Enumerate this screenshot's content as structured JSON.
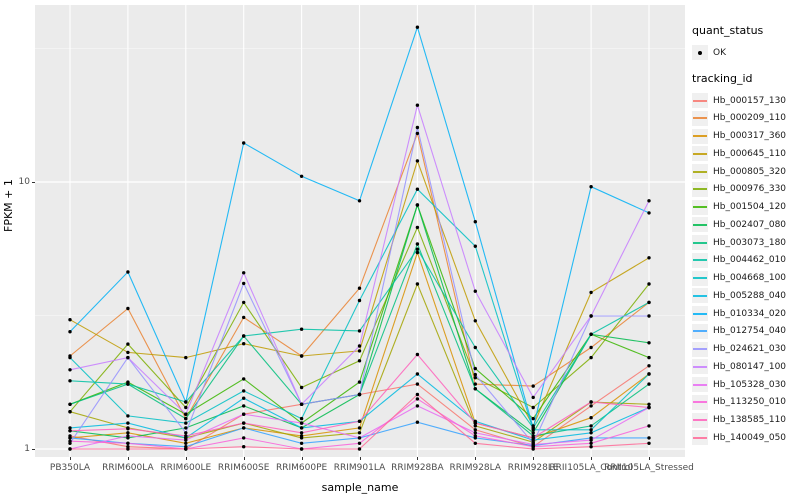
{
  "chart_data": {
    "type": "line",
    "title": "",
    "xlabel": "sample_name",
    "ylabel": "FPKM + 1",
    "y_scale": "log10",
    "ylim": [
      0.93,
      46
    ],
    "y_major_ticks": [
      1,
      10
    ],
    "y_tick_labels": [
      "1",
      "10"
    ],
    "y_minor_ticks": [
      3.1623,
      31.623
    ],
    "grid": "on",
    "legend_position": "right",
    "panel_bg": "#EBEBEB",
    "grid_color": "#FFFFFF",
    "point_color": "#000000",
    "categories": [
      "PB350LA",
      "RRIM600LA",
      "RRIM600LE",
      "RRIM600SE",
      "RRIM600PE",
      "RRIM901LA",
      "RRIM928BA",
      "RRIM928LA",
      "RRIM928LE",
      "RRII105LA_Control",
      "RRII105LA_Stressed"
    ],
    "series": [
      {
        "name": "Hb_000157_130",
        "color": "#F8766D",
        "values": [
          1.12,
          1.02,
          1.0,
          1.35,
          1.47,
          1.6,
          1.75,
          1.18,
          1.02,
          1.45,
          2.05
        ]
      },
      {
        "name": "Hb_000209_110",
        "color": "#EA8331",
        "values": [
          2.23,
          3.36,
          1.3,
          3.11,
          2.23,
          4.0,
          15.2,
          1.75,
          1.72,
          2.4,
          3.54
        ]
      },
      {
        "name": "Hb_000317_360",
        "color": "#D89000",
        "values": [
          1.1,
          1.15,
          1.05,
          1.2,
          1.12,
          1.2,
          5.44,
          1.25,
          1.1,
          1.31,
          1.91
        ]
      },
      {
        "name": "Hb_000645_110",
        "color": "#C09B00",
        "values": [
          3.05,
          2.3,
          2.2,
          2.48,
          2.23,
          2.33,
          12.0,
          3.02,
          1.22,
          3.86,
          5.2
        ]
      },
      {
        "name": "Hb_000805_320",
        "color": "#A3A500",
        "values": [
          1.38,
          1.2,
          1.1,
          1.25,
          1.1,
          1.15,
          4.15,
          1.22,
          1.06,
          1.5,
          1.47
        ]
      },
      {
        "name": "Hb_000976_330",
        "color": "#7CAE00",
        "values": [
          1.38,
          2.47,
          1.43,
          3.54,
          1.7,
          2.14,
          6.76,
          1.85,
          1.43,
          2.2,
          4.15
        ]
      },
      {
        "name": "Hb_001504_120",
        "color": "#39B600",
        "values": [
          1.47,
          1.78,
          1.35,
          1.83,
          1.25,
          1.78,
          8.2,
          2.0,
          1.3,
          2.69,
          2.2
        ]
      },
      {
        "name": "Hb_002407_080",
        "color": "#00BB4E",
        "values": [
          1.17,
          1.1,
          1.2,
          1.45,
          1.2,
          1.6,
          8.2,
          1.68,
          1.15,
          2.69,
          2.5
        ]
      },
      {
        "name": "Hb_003073_180",
        "color": "#00BF7D",
        "values": [
          1.47,
          1.75,
          1.3,
          2.65,
          1.47,
          1.6,
          5.86,
          1.68,
          1.12,
          1.22,
          1.75
        ]
      },
      {
        "name": "Hb_004462_010",
        "color": "#00C1A3",
        "values": [
          1.8,
          1.75,
          1.5,
          2.65,
          2.81,
          2.77,
          5.6,
          2.4,
          1.2,
          2.69,
          3.54
        ]
      },
      {
        "name": "Hb_004668_100",
        "color": "#00BFC4",
        "values": [
          2.2,
          1.33,
          1.25,
          1.65,
          1.3,
          3.6,
          9.4,
          5.75,
          1.18,
          1.18,
          1.91
        ]
      },
      {
        "name": "Hb_005288_040",
        "color": "#00BAE0",
        "values": [
          1.2,
          1.25,
          1.1,
          1.55,
          1.2,
          1.27,
          1.91,
          1.27,
          1.08,
          1.15,
          1.43
        ]
      },
      {
        "name": "Hb_010334_020",
        "color": "#00B0F6",
        "values": [
          2.75,
          4.6,
          1.5,
          14.0,
          10.5,
          8.5,
          38.0,
          7.1,
          1.2,
          9.6,
          7.66
        ]
      },
      {
        "name": "Hb_012754_040",
        "color": "#35A2FF",
        "values": [
          1.1,
          1.05,
          1.02,
          1.2,
          1.05,
          1.1,
          1.26,
          1.1,
          1.03,
          1.1,
          1.1
        ]
      },
      {
        "name": "Hb_024621_030",
        "color": "#9590FF",
        "values": [
          1.05,
          2.2,
          1.15,
          4.17,
          1.47,
          1.6,
          16.0,
          1.9,
          1.05,
          3.15,
          3.15
        ]
      },
      {
        "name": "Hb_080147_100",
        "color": "#C77CFF",
        "values": [
          1.98,
          2.2,
          1.35,
          4.57,
          1.47,
          2.43,
          19.4,
          3.9,
          1.56,
          3.15,
          8.5
        ]
      },
      {
        "name": "Hb_105328_030",
        "color": "#E76BF3",
        "values": [
          1.0,
          1.12,
          1.08,
          1.35,
          1.25,
          1.1,
          1.45,
          1.15,
          1.04,
          1.08,
          1.43
        ]
      },
      {
        "name": "Hb_113250_010",
        "color": "#FA62DB",
        "values": [
          1.07,
          1.05,
          1.0,
          1.1,
          1.0,
          1.05,
          1.54,
          1.12,
          1.02,
          1.05,
          1.22
        ]
      },
      {
        "name": "Hb_138585_110",
        "color": "#FF62BC",
        "values": [
          1.17,
          1.19,
          1.12,
          1.25,
          1.15,
          1.27,
          2.26,
          1.25,
          1.1,
          1.5,
          1.43
        ]
      },
      {
        "name": "Hb_140049_050",
        "color": "#FF6A98",
        "values": [
          1.0,
          1.0,
          1.0,
          1.02,
          1.0,
          1.0,
          1.6,
          1.05,
          1.0,
          1.02,
          1.05
        ]
      }
    ],
    "legend": {
      "quant_status_title": "quant_status",
      "quant_status_items": [
        {
          "label": "OK"
        }
      ],
      "tracking_title": "tracking_id"
    }
  }
}
